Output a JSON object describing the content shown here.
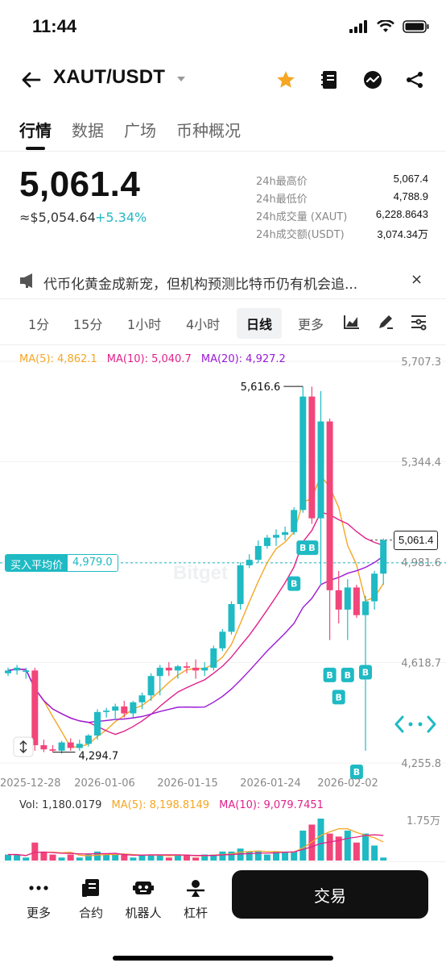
{
  "status": {
    "time": "11:44"
  },
  "header": {
    "pair": "XAUT/USDT"
  },
  "tabs": [
    "行情",
    "数据",
    "广场",
    "币种概况"
  ],
  "price": {
    "last": "5,061.4",
    "usd": "≈$5,054.64",
    "change": "+5.34%"
  },
  "stats": [
    {
      "label": "24h最高价",
      "value": "5,067.4"
    },
    {
      "label": "24h最低价",
      "value": "4,788.9"
    },
    {
      "label": "24h成交量 (XAUT)",
      "value": "6,228.8643"
    },
    {
      "label": "24h成交额(USDT)",
      "value": "3,074.34万"
    }
  ],
  "news": {
    "text": "代币化黄金成新宠，但机构预测比特币仍有机会追...",
    "close": "×"
  },
  "intervals": [
    "1分",
    "15分",
    "1小时",
    "4小时",
    "日线",
    "更多"
  ],
  "ma": {
    "ma5": "MA(5): 4,862.1",
    "ma10": "MA(10): 5,040.7",
    "ma20": "MA(20): 4,927.2"
  },
  "colors": {
    "up": "#1fbac4",
    "down": "#f2457a",
    "ma5": "#f5a623",
    "ma10": "#e0218a",
    "ma20": "#9b19d6"
  },
  "y_axis": [
    "5,707.3",
    "5,344.4",
    "4,981.6",
    "4,618.7",
    "4,255.8"
  ],
  "x_axis": [
    "2025-12-28",
    "2026-01-06",
    "2026-01-15",
    "2026-01-24",
    "2026-02-02"
  ],
  "annotations": {
    "high": "5,616.6",
    "low": "4,294.7",
    "last_box": "5,061.4",
    "buy_marker": "B"
  },
  "avg_price": {
    "label": "买入平均价",
    "value": "4,979.0"
  },
  "watermark": "Bitget",
  "volume": {
    "vol": "Vol: 1,180.0179",
    "ma5": "MA(5): 8,198.8149",
    "ma10": "MA(10): 9,079.7451",
    "axis_max": "1.75万"
  },
  "chart_data": {
    "type": "candlestick",
    "ylim": [
      4255.8,
      5707.3
    ],
    "x_ticks": [
      "2025-12-28",
      "2026-01-06",
      "2026-01-15",
      "2026-01-24",
      "2026-02-02"
    ],
    "candles": [
      {
        "o": 4580,
        "h": 4600,
        "l": 4570,
        "c": 4590
      },
      {
        "o": 4590,
        "h": 4610,
        "l": 4575,
        "c": 4600
      },
      {
        "o": 4585,
        "h": 4600,
        "l": 4560,
        "c": 4590
      },
      {
        "o": 4590,
        "h": 4600,
        "l": 4300,
        "c": 4320
      },
      {
        "o": 4320,
        "h": 4340,
        "l": 4295,
        "c": 4305
      },
      {
        "o": 4305,
        "h": 4320,
        "l": 4295,
        "c": 4300
      },
      {
        "o": 4300,
        "h": 4335,
        "l": 4290,
        "c": 4330
      },
      {
        "o": 4330,
        "h": 4345,
        "l": 4300,
        "c": 4310
      },
      {
        "o": 4310,
        "h": 4340,
        "l": 4300,
        "c": 4325
      },
      {
        "o": 4325,
        "h": 4360,
        "l": 4315,
        "c": 4355
      },
      {
        "o": 4355,
        "h": 4450,
        "l": 4340,
        "c": 4440
      },
      {
        "o": 4440,
        "h": 4455,
        "l": 4420,
        "c": 4445
      },
      {
        "o": 4445,
        "h": 4470,
        "l": 4410,
        "c": 4460
      },
      {
        "o": 4460,
        "h": 4480,
        "l": 4420,
        "c": 4435
      },
      {
        "o": 4435,
        "h": 4480,
        "l": 4420,
        "c": 4475
      },
      {
        "o": 4475,
        "h": 4510,
        "l": 4450,
        "c": 4500
      },
      {
        "o": 4500,
        "h": 4580,
        "l": 4480,
        "c": 4570
      },
      {
        "o": 4570,
        "h": 4610,
        "l": 4500,
        "c": 4600
      },
      {
        "o": 4600,
        "h": 4620,
        "l": 4570,
        "c": 4590
      },
      {
        "o": 4590,
        "h": 4610,
        "l": 4560,
        "c": 4605
      },
      {
        "o": 4605,
        "h": 4620,
        "l": 4580,
        "c": 4600
      },
      {
        "o": 4600,
        "h": 4630,
        "l": 4560,
        "c": 4590
      },
      {
        "o": 4590,
        "h": 4620,
        "l": 4570,
        "c": 4600
      },
      {
        "o": 4600,
        "h": 4680,
        "l": 4590,
        "c": 4670
      },
      {
        "o": 4670,
        "h": 4740,
        "l": 4660,
        "c": 4730
      },
      {
        "o": 4730,
        "h": 4840,
        "l": 4720,
        "c": 4830
      },
      {
        "o": 4830,
        "h": 4980,
        "l": 4810,
        "c": 4970
      },
      {
        "o": 4970,
        "h": 5010,
        "l": 4960,
        "c": 4990
      },
      {
        "o": 4990,
        "h": 5060,
        "l": 4980,
        "c": 5040
      },
      {
        "o": 5040,
        "h": 5080,
        "l": 5030,
        "c": 5070
      },
      {
        "o": 5070,
        "h": 5100,
        "l": 5040,
        "c": 5080
      },
      {
        "o": 5080,
        "h": 5110,
        "l": 5060,
        "c": 5090
      },
      {
        "o": 5090,
        "h": 5180,
        "l": 5080,
        "c": 5170
      },
      {
        "o": 5170,
        "h": 5616,
        "l": 5160,
        "c": 5580
      },
      {
        "o": 5580,
        "h": 5616,
        "l": 5120,
        "c": 5140
      },
      {
        "o": 5140,
        "h": 5600,
        "l": 4900,
        "c": 5490
      },
      {
        "o": 5490,
        "h": 5500,
        "l": 4700,
        "c": 4880
      },
      {
        "o": 4880,
        "h": 4950,
        "l": 4760,
        "c": 4810
      },
      {
        "o": 4810,
        "h": 4920,
        "l": 4700,
        "c": 4890
      },
      {
        "o": 4890,
        "h": 4900,
        "l": 4780,
        "c": 4790
      },
      {
        "o": 4790,
        "h": 4860,
        "l": 4300,
        "c": 4840
      },
      {
        "o": 4840,
        "h": 4950,
        "l": 4810,
        "c": 4940
      },
      {
        "o": 4940,
        "h": 5067,
        "l": 4900,
        "c": 5061
      }
    ],
    "volume": [
      2,
      2,
      1,
      6,
      3,
      2,
      1,
      2,
      1,
      2,
      3,
      2,
      2,
      2,
      1,
      2,
      2,
      2,
      1,
      2,
      2,
      1,
      2,
      2,
      3,
      3,
      4,
      3,
      3,
      2,
      3,
      3,
      3,
      10,
      12,
      14,
      9,
      8,
      10,
      6,
      9,
      5,
      1
    ]
  }
}
